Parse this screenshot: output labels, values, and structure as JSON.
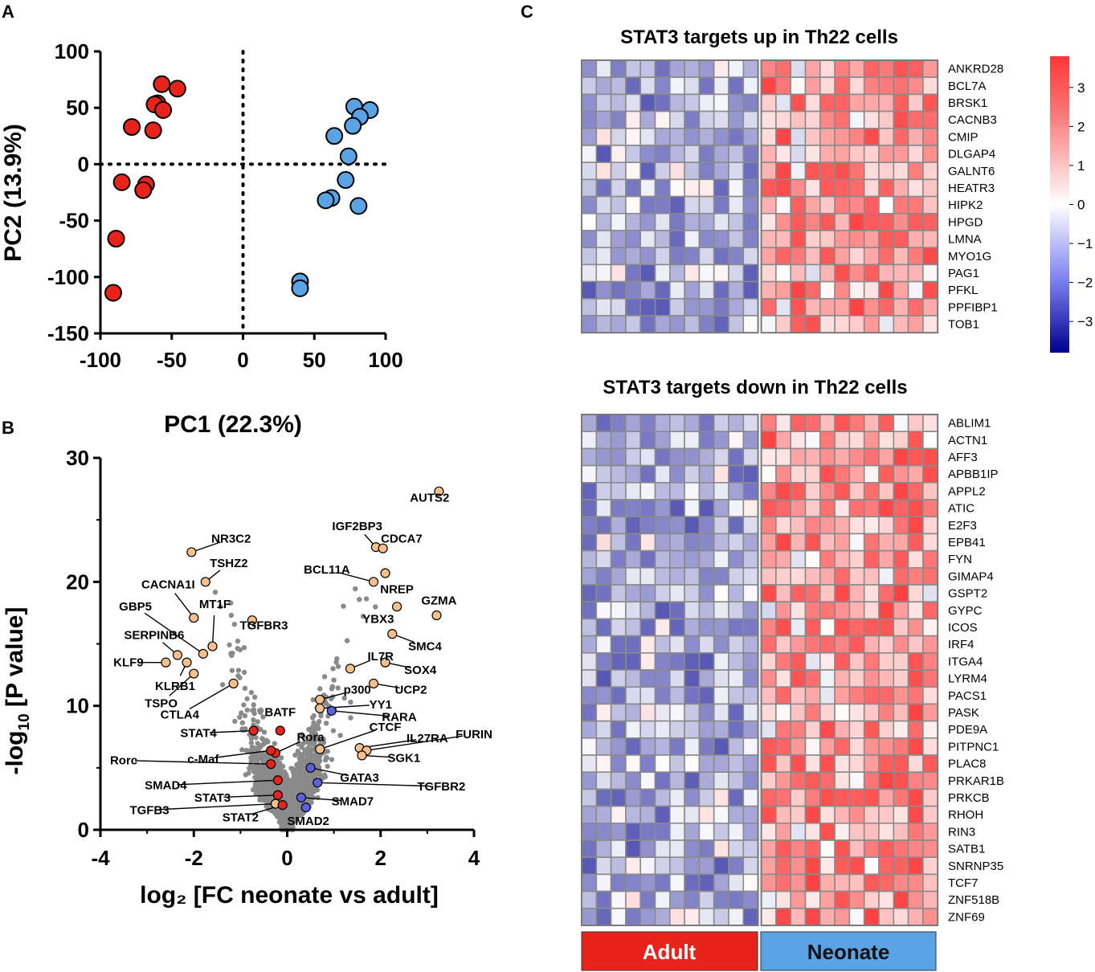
{
  "panels": {
    "a": "A",
    "b": "B",
    "c": "C"
  },
  "colors": {
    "adult_red": "#e8231c",
    "neonate_blue": "#5aa4e6",
    "orange": "#f5c08a",
    "purple": "#5b5fe0",
    "gray_points": "#8a8a8a",
    "grid_border": "#808080"
  },
  "chart_data": [
    {
      "id": "pca",
      "type": "scatter",
      "xlabel": "PC1 (22.3%)",
      "ylabel": "PC2 (13.9%)",
      "xlim": [
        -100,
        100
      ],
      "ylim": [
        -150,
        100
      ],
      "xticks": [
        "-100",
        "-50",
        "0",
        "50",
        "100"
      ],
      "yticks": [
        "100",
        "50",
        "0",
        "-50",
        "-100",
        "-150"
      ],
      "series": [
        {
          "name": "Adult",
          "color": "#e8231c",
          "points": [
            [
              -57,
              71
            ],
            [
              -46,
              67
            ],
            [
              -60,
              54
            ],
            [
              -62,
              53
            ],
            [
              -56,
              48
            ],
            [
              -78,
              33
            ],
            [
              -63,
              30
            ],
            [
              -68,
              -18
            ],
            [
              -70,
              -23
            ],
            [
              -85,
              -16
            ],
            [
              -89,
              -66
            ],
            [
              -91,
              -114
            ]
          ]
        },
        {
          "name": "Neonate",
          "color": "#5aa4e6",
          "points": [
            [
              78,
              51
            ],
            [
              89,
              48
            ],
            [
              82,
              42
            ],
            [
              64,
              25
            ],
            [
              77,
              34
            ],
            [
              74,
              7
            ],
            [
              72,
              -14
            ],
            [
              81,
              -37
            ],
            [
              62,
              -30
            ],
            [
              58,
              -32
            ],
            [
              40,
              -104
            ],
            [
              40,
              -110
            ]
          ]
        }
      ]
    },
    {
      "id": "volcano",
      "type": "scatter",
      "xlabel": "log₂ [FC neonate vs adult]",
      "ylabel_main": "-log",
      "ylabel_sub": "10",
      "ylabel_tail": " [P value]",
      "xlim": [
        -4,
        4
      ],
      "ylim": [
        0,
        30
      ],
      "xticks": [
        "-4",
        "-2",
        "0",
        "2",
        "4"
      ],
      "yticks": [
        "30",
        "20",
        "10",
        "0"
      ],
      "labeled_points": [
        {
          "gene": "AUTS2",
          "x": 3.25,
          "y": 27.3,
          "c": "orange",
          "lx": 3.05,
          "ly": 26.8,
          "side": "left"
        },
        {
          "gene": "IGF2BP3",
          "x": 1.9,
          "y": 22.8,
          "c": "orange",
          "lx": 1.5,
          "ly": 24.5,
          "side": "center"
        },
        {
          "gene": "CDCA7",
          "x": 2.05,
          "y": 22.7,
          "c": "orange",
          "lx": 2.45,
          "ly": 23.5,
          "side": "leftlink"
        },
        {
          "gene": "NR3C2",
          "x": -2.05,
          "y": 22.4,
          "c": "orange",
          "lx": -1.2,
          "ly": 23.5,
          "side": "leftlink"
        },
        {
          "gene": "TSHZ2",
          "x": -1.75,
          "y": 20.0,
          "c": "orange",
          "lx": -1.25,
          "ly": 21.5,
          "side": "leftlink"
        },
        {
          "gene": "BCL11A",
          "x": 1.85,
          "y": 20.0,
          "c": "orange",
          "lx": 0.85,
          "ly": 21.0,
          "side": "center"
        },
        {
          "gene": "NREP",
          "x": 2.1,
          "y": 20.7,
          "c": "orange",
          "lx": 2.35,
          "ly": 19.4,
          "side": "center"
        },
        {
          "gene": "CACNA1I",
          "x": -2.0,
          "y": 17.1,
          "c": "orange",
          "lx": -2.55,
          "ly": 19.8,
          "side": "center"
        },
        {
          "gene": "GBP5",
          "x": -1.8,
          "y": 14.2,
          "c": "orange",
          "lx": -3.25,
          "ly": 18.0,
          "side": "center"
        },
        {
          "gene": "MT1F",
          "x": -1.6,
          "y": 14.8,
          "c": "orange",
          "lx": -1.55,
          "ly": 18.2,
          "side": "center"
        },
        {
          "gene": "GZMA",
          "x": 3.2,
          "y": 17.3,
          "c": "orange",
          "lx": 3.25,
          "ly": 18.5,
          "side": "center"
        },
        {
          "gene": "YBX3",
          "x": 2.35,
          "y": 18.0,
          "c": "orange",
          "lx": 1.95,
          "ly": 17.0,
          "side": "center"
        },
        {
          "gene": "TGFBR3",
          "x": -0.75,
          "y": 16.9,
          "c": "orange",
          "lx": -0.5,
          "ly": 16.5,
          "side": "center"
        },
        {
          "gene": "SERPINB6",
          "x": -2.35,
          "y": 14.1,
          "c": "orange",
          "lx": -2.85,
          "ly": 15.7,
          "side": "center"
        },
        {
          "gene": "SMC4",
          "x": 2.25,
          "y": 15.8,
          "c": "orange",
          "lx": 2.95,
          "ly": 14.8,
          "side": "center"
        },
        {
          "gene": "KLF9",
          "x": -2.6,
          "y": 13.5,
          "c": "orange",
          "lx": -3.4,
          "ly": 13.5,
          "side": "center"
        },
        {
          "gene": "KLRB1",
          "x": -2.15,
          "y": 13.5,
          "c": "orange",
          "lx": -2.4,
          "ly": 11.6,
          "side": "center"
        },
        {
          "gene": "IL7R",
          "x": 1.35,
          "y": 13.0,
          "c": "orange",
          "lx": 2.0,
          "ly": 14.0,
          "side": "center"
        },
        {
          "gene": "SOX4",
          "x": 2.1,
          "y": 13.5,
          "c": "orange",
          "lx": 2.85,
          "ly": 12.9,
          "side": "center"
        },
        {
          "gene": "TSPO",
          "x": -2.0,
          "y": 12.6,
          "c": "orange",
          "lx": -2.7,
          "ly": 10.2,
          "side": "center"
        },
        {
          "gene": "UCP2",
          "x": 1.85,
          "y": 11.8,
          "c": "orange",
          "lx": 2.65,
          "ly": 11.3,
          "side": "center"
        },
        {
          "gene": "p300",
          "x": 0.7,
          "y": 10.5,
          "c": "orange",
          "lx": 1.5,
          "ly": 11.3,
          "side": "center"
        },
        {
          "gene": "CTLA4",
          "x": -1.15,
          "y": 11.8,
          "c": "orange",
          "lx": -2.3,
          "ly": 9.3,
          "side": "center"
        },
        {
          "gene": "YY1",
          "x": 0.7,
          "y": 9.8,
          "c": "orange",
          "lx": 2.0,
          "ly": 10.1,
          "side": "center"
        },
        {
          "gene": "BATF",
          "x": -0.15,
          "y": 8.0,
          "c": "red",
          "lx": -0.15,
          "ly": 9.5,
          "side": "center"
        },
        {
          "gene": "RARA",
          "x": 0.95,
          "y": 9.6,
          "c": "purple",
          "lx": 2.4,
          "ly": 9.1,
          "side": "center"
        },
        {
          "gene": "STAT4",
          "x": -0.72,
          "y": 8.0,
          "c": "red",
          "lx": -1.9,
          "ly": 7.8,
          "side": "center"
        },
        {
          "gene": "CTCF",
          "x": 0.7,
          "y": 6.5,
          "c": "orange",
          "lx": 2.1,
          "ly": 8.3,
          "side": "center"
        },
        {
          "gene": "Rora",
          "x": -0.25,
          "y": 6.2,
          "c": "red",
          "lx": 0.5,
          "ly": 7.5,
          "side": "center"
        },
        {
          "gene": "IL27RA",
          "x": 1.55,
          "y": 6.6,
          "c": "orange",
          "lx": 3.0,
          "ly": 7.4,
          "side": "center"
        },
        {
          "gene": "FURIN",
          "x": 1.7,
          "y": 6.4,
          "c": "orange",
          "lx": 4.0,
          "ly": 7.7,
          "side": "center"
        },
        {
          "gene": "c-Maf",
          "x": -0.35,
          "y": 6.4,
          "c": "red",
          "lx": -1.8,
          "ly": 5.7,
          "side": "center"
        },
        {
          "gene": "SGK1",
          "x": 1.6,
          "y": 6.0,
          "c": "orange",
          "lx": 2.5,
          "ly": 5.8,
          "side": "center"
        },
        {
          "gene": "Rorc",
          "x": -0.35,
          "y": 5.3,
          "c": "red",
          "lx": -3.5,
          "ly": 5.6,
          "side": "center"
        },
        {
          "gene": "GATA3",
          "x": 0.5,
          "y": 5.0,
          "c": "purple",
          "lx": 1.55,
          "ly": 4.2,
          "side": "center"
        },
        {
          "gene": "TGFBR2",
          "x": 0.65,
          "y": 3.8,
          "c": "purple",
          "lx": 3.3,
          "ly": 3.5,
          "side": "center"
        },
        {
          "gene": "SMAD4",
          "x": -0.2,
          "y": 4.0,
          "c": "red",
          "lx": -2.6,
          "ly": 3.6,
          "side": "center"
        },
        {
          "gene": "STAT3",
          "x": -0.2,
          "y": 2.8,
          "c": "red",
          "lx": -1.6,
          "ly": 2.6,
          "side": "center"
        },
        {
          "gene": "SMAD7",
          "x": 0.3,
          "y": 2.6,
          "c": "purple",
          "lx": 1.4,
          "ly": 2.3,
          "side": "center"
        },
        {
          "gene": "TGFB3",
          "x": -0.25,
          "y": 2.1,
          "c": "orange",
          "lx": -2.95,
          "ly": 1.6,
          "side": "center"
        },
        {
          "gene": "STAT2",
          "x": -0.1,
          "y": 2.0,
          "c": "red",
          "lx": -1.0,
          "ly": 1.0,
          "side": "center"
        },
        {
          "gene": "SMAD2",
          "x": 0.4,
          "y": 1.8,
          "c": "purple",
          "lx": 0.45,
          "ly": 0.7,
          "side": "center"
        }
      ]
    },
    {
      "id": "heatmap_up",
      "type": "heatmap",
      "title": "STAT3 targets up in Th22 cells",
      "columns_adult": 12,
      "columns_neonate": 12,
      "rows": [
        "ANKRD28",
        "BCL7A",
        "BRSK1",
        "CACNB3",
        "CMIP",
        "DLGAP4",
        "GALNT6",
        "HEATR3",
        "HIPK2",
        "HPGD",
        "LMNA",
        "MYO1G",
        "PAG1",
        "PFKL",
        "PPFIBP1",
        "TOB1"
      ]
    },
    {
      "id": "heatmap_down",
      "type": "heatmap",
      "title": "STAT3 targets down in Th22 cells",
      "columns_adult": 12,
      "columns_neonate": 12,
      "rows": [
        "ABLIM1",
        "ACTN1",
        "AFF3",
        "APBB1IP",
        "APPL2",
        "ATIC",
        "E2F3",
        "EPB41",
        "FYN",
        "GIMAP4",
        "GSPT2",
        "GYPC",
        "ICOS",
        "IRF4",
        "ITGA4",
        "LYRM4",
        "PACS1",
        "PASK",
        "PDE9A",
        "PITPNC1",
        "PLAC8",
        "PRKAR1B",
        "PRKCB",
        "RHOH",
        "RIN3",
        "SATB1",
        "SNRNP35",
        "TCF7",
        "ZNF518B",
        "ZNF69"
      ]
    },
    {
      "id": "colorbar",
      "type": "colorbar",
      "range": [
        -3.8,
        3.8
      ],
      "ticks": [
        "3",
        "2",
        "1",
        "0",
        "−1",
        "−2",
        "−3"
      ],
      "tick_values": [
        3,
        2,
        1,
        0,
        -1,
        -2,
        -3
      ]
    }
  ],
  "groups": {
    "adult": "Adult",
    "neonate": "Neonate"
  }
}
